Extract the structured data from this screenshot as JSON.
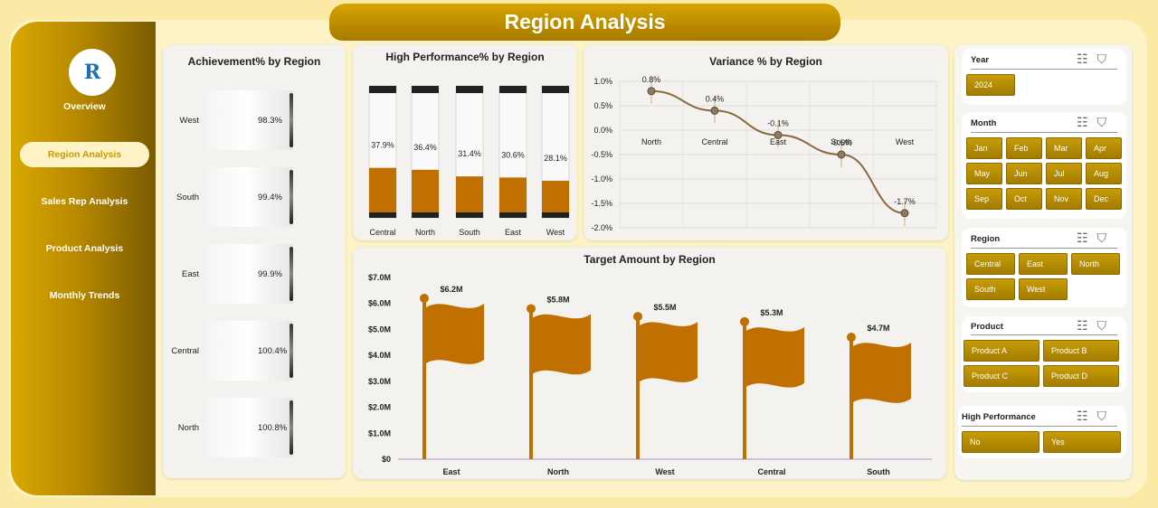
{
  "title": "Region Analysis",
  "logo_text": "R",
  "nav": [
    "Overview",
    "Region Analysis",
    "Sales Rep Analysis",
    "Product Analysis",
    "Monthly Trends"
  ],
  "achievement": {
    "title": "Achievement% by Region",
    "rows": [
      {
        "label": "West",
        "value": "98.3%"
      },
      {
        "label": "South",
        "value": "99.4%"
      },
      {
        "label": "East",
        "value": "99.9%"
      },
      {
        "label": "Central",
        "value": "100.4%"
      },
      {
        "label": "North",
        "value": "100.8%"
      }
    ]
  },
  "high_perf": {
    "title": "High Performance% by Region",
    "bars": [
      {
        "label": "Central",
        "value": "37.9%"
      },
      {
        "label": "North",
        "value": "36.4%"
      },
      {
        "label": "South",
        "value": "31.4%"
      },
      {
        "label": "East",
        "value": "30.6%"
      },
      {
        "label": "West",
        "value": "28.1%"
      }
    ]
  },
  "variance": {
    "title": "Variance % by Region",
    "yticks": [
      "1.0%",
      "0.5%",
      "0.0%",
      "-0.5%",
      "-1.0%",
      "-1.5%",
      "-2.0%"
    ],
    "points": [
      {
        "label": "North",
        "value": "0.8%"
      },
      {
        "label": "Central",
        "value": "0.4%"
      },
      {
        "label": "East",
        "value": "-0.1%"
      },
      {
        "label": "South",
        "value": "-0.5%"
      },
      {
        "label": "West",
        "value": "-1.7%"
      }
    ]
  },
  "target": {
    "title": "Target Amount by Region",
    "yticks": [
      "$7.0M",
      "$6.0M",
      "$5.0M",
      "$4.0M",
      "$3.0M",
      "$2.0M",
      "$1.0M",
      "$0"
    ],
    "bars": [
      {
        "label": "East",
        "value": "$6.2M"
      },
      {
        "label": "North",
        "value": "$5.8M"
      },
      {
        "label": "West",
        "value": "$5.5M"
      },
      {
        "label": "Central",
        "value": "$5.3M"
      },
      {
        "label": "South",
        "value": "$4.7M"
      }
    ]
  },
  "chart_data": [
    {
      "type": "bar",
      "title": "Achievement% by Region",
      "categories": [
        "West",
        "South",
        "East",
        "Central",
        "North"
      ],
      "values": [
        98.3,
        99.4,
        99.9,
        100.4,
        100.8
      ]
    },
    {
      "type": "bar",
      "title": "High Performance% by Region",
      "categories": [
        "Central",
        "North",
        "South",
        "East",
        "West"
      ],
      "values": [
        37.9,
        36.4,
        31.4,
        30.6,
        28.1
      ],
      "ylim": [
        0,
        100
      ]
    },
    {
      "type": "line",
      "title": "Variance % by Region",
      "categories": [
        "North",
        "Central",
        "East",
        "South",
        "West"
      ],
      "values": [
        0.8,
        0.4,
        -0.1,
        -0.5,
        -1.7
      ],
      "ylim": [
        -2.0,
        1.0
      ]
    },
    {
      "type": "bar",
      "title": "Target Amount by Region",
      "categories": [
        "East",
        "North",
        "West",
        "Central",
        "South"
      ],
      "values": [
        6.2,
        5.8,
        5.5,
        5.3,
        4.7
      ],
      "ylim": [
        0,
        7.0
      ],
      "ylabel": "$M"
    }
  ],
  "slicers": {
    "year": {
      "title": "Year",
      "items": [
        "2024"
      ]
    },
    "month": {
      "title": "Month",
      "items": [
        "Jan",
        "Feb",
        "Mar",
        "Apr",
        "May",
        "Jun",
        "Jul",
        "Aug",
        "Sep",
        "Oct",
        "Nov",
        "Dec"
      ]
    },
    "region": {
      "title": "Region",
      "items": [
        "Central",
        "East",
        "North",
        "South",
        "West"
      ]
    },
    "product": {
      "title": "Product",
      "items": [
        "Product A",
        "Product B",
        "Product C",
        "Product D"
      ]
    },
    "high_performance": {
      "title": "High Performance",
      "items": [
        "No",
        "Yes"
      ]
    }
  },
  "colors": {
    "accent": "#c07000",
    "gold": "#c89c08"
  }
}
